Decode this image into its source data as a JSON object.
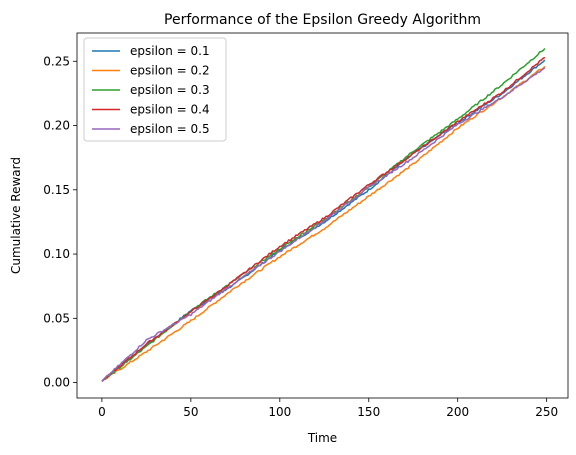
{
  "chart_data": {
    "type": "line",
    "title": "Performance of the Epsilon Greedy Algorithm",
    "xlabel": "Time",
    "ylabel": "Cumulative Reward",
    "xlim": [
      -14,
      262
    ],
    "ylim": [
      -0.012,
      0.272
    ],
    "xticks": [
      0,
      50,
      100,
      150,
      200,
      250
    ],
    "xtick_labels": [
      "0",
      "50",
      "100",
      "150",
      "200",
      "250"
    ],
    "yticks": [
      0.0,
      0.05,
      0.1,
      0.15,
      0.2,
      0.25
    ],
    "ytick_labels": [
      "0.00",
      "0.05",
      "0.10",
      "0.15",
      "0.20",
      "0.25"
    ],
    "grid": false,
    "legend_position": "top-left",
    "series": [
      {
        "name": "epsilon = 0.1",
        "color": "#1f77b4",
        "x": [
          0,
          25,
          50,
          75,
          100,
          125,
          150,
          175,
          200,
          225,
          249
        ],
        "y": [
          0.001,
          0.029,
          0.056,
          0.077,
          0.103,
          0.125,
          0.15,
          0.178,
          0.202,
          0.225,
          0.251
        ]
      },
      {
        "name": "epsilon = 0.2",
        "color": "#ff7f0e",
        "x": [
          0,
          25,
          50,
          75,
          100,
          125,
          150,
          175,
          200,
          225,
          249
        ],
        "y": [
          0.001,
          0.024,
          0.048,
          0.074,
          0.098,
          0.12,
          0.145,
          0.17,
          0.198,
          0.222,
          0.246
        ]
      },
      {
        "name": "epsilon = 0.3",
        "color": "#2ca02c",
        "x": [
          0,
          25,
          50,
          75,
          100,
          125,
          150,
          175,
          200,
          225,
          249
        ],
        "y": [
          0.001,
          0.028,
          0.056,
          0.08,
          0.104,
          0.127,
          0.152,
          0.18,
          0.205,
          0.232,
          0.26
        ]
      },
      {
        "name": "epsilon = 0.4",
        "color": "#d62728",
        "x": [
          0,
          25,
          50,
          75,
          100,
          125,
          150,
          175,
          200,
          225,
          249
        ],
        "y": [
          0.001,
          0.03,
          0.055,
          0.08,
          0.106,
          0.128,
          0.154,
          0.178,
          0.203,
          0.226,
          0.253
        ]
      },
      {
        "name": "epsilon = 0.5",
        "color": "#9467bd",
        "x": [
          0,
          25,
          50,
          75,
          100,
          125,
          150,
          175,
          200,
          225,
          249
        ],
        "y": [
          0.001,
          0.033,
          0.053,
          0.078,
          0.102,
          0.126,
          0.152,
          0.175,
          0.201,
          0.222,
          0.245
        ]
      }
    ]
  }
}
